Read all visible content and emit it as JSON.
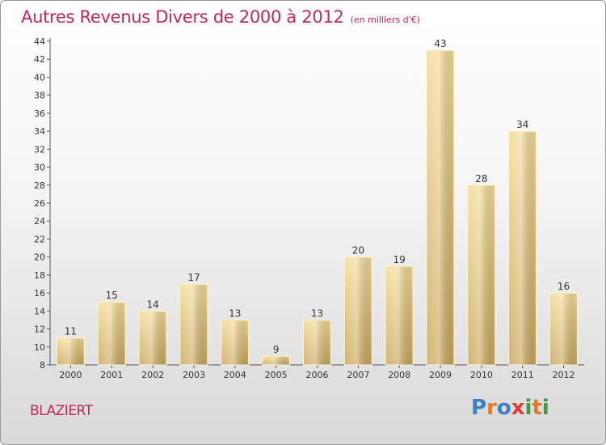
{
  "header": {
    "title": "Autres Revenus Divers de 2000 à 2012",
    "unit": "(en milliers d'€)"
  },
  "municipality": "BLAZIERT",
  "brand": {
    "letters": [
      "P",
      "r",
      "o",
      "x",
      "i",
      "t",
      "i"
    ],
    "colors": [
      "#3a7fc7",
      "#e87722",
      "#3a7fc7",
      "#e03a3a",
      "#3a9f3a",
      "#e87722",
      "#3a9f3a"
    ]
  },
  "chart_data": {
    "type": "bar",
    "title": "Autres Revenus Divers de 2000 à 2012",
    "xlabel": "",
    "ylabel": "",
    "categories": [
      "2000",
      "2001",
      "2002",
      "2003",
      "2004",
      "2005",
      "2006",
      "2007",
      "2008",
      "2009",
      "2010",
      "2011",
      "2012"
    ],
    "values": [
      11,
      15,
      14,
      17,
      13,
      9,
      13,
      20,
      19,
      43,
      28,
      34,
      16
    ],
    "ylim": [
      8,
      44
    ],
    "yticks": [
      "8",
      "10",
      "12",
      "14",
      "16",
      "18",
      "20",
      "22",
      "24",
      "26",
      "28",
      "30",
      "32",
      "34",
      "36",
      "38",
      "40",
      "42",
      "44"
    ],
    "data_labels": [
      "11",
      "15",
      "14",
      "17",
      "13",
      "9",
      "13",
      "20",
      "19",
      "43",
      "28",
      "34",
      "16"
    ],
    "grid": false,
    "bar_color": "#e8cf86"
  }
}
